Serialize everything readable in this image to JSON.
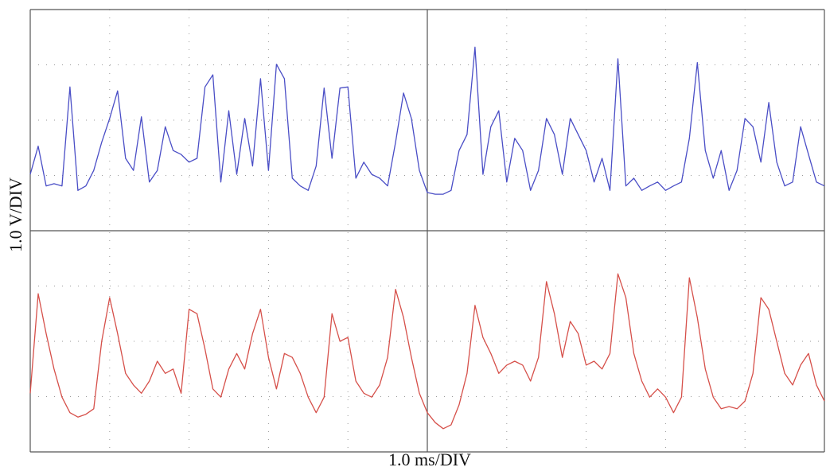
{
  "chart_data": {
    "type": "line",
    "ylabel": "1.0 V/DIV",
    "xlabel": "1.0 ms/DIV",
    "xlim": [
      0,
      10
    ],
    "ylim": [
      -4,
      4
    ],
    "xticks": [
      0,
      1,
      2,
      3,
      4,
      5,
      6,
      7,
      8,
      9,
      10
    ],
    "yticks": [
      -4,
      -3,
      -2,
      -1,
      0,
      1,
      2,
      3,
      4
    ],
    "grid": true,
    "x": [
      0,
      0.1,
      0.2,
      0.3,
      0.4,
      0.5,
      0.6,
      0.7,
      0.8,
      0.9,
      1,
      1.1,
      1.2,
      1.3,
      1.4,
      1.5,
      1.6,
      1.7,
      1.8,
      1.9,
      2,
      2.1,
      2.2,
      2.3,
      2.4,
      2.5,
      2.6,
      2.7,
      2.8,
      2.9,
      3,
      3.1,
      3.2,
      3.3,
      3.4,
      3.5,
      3.6,
      3.7,
      3.8,
      3.9,
      4,
      4.1,
      4.2,
      4.3,
      4.4,
      4.5,
      4.6,
      4.7,
      4.8,
      4.9,
      5,
      5.1,
      5.2,
      5.3,
      5.4,
      5.5,
      5.6,
      5.7,
      5.8,
      5.9,
      6,
      6.1,
      6.2,
      6.3,
      6.4,
      6.5,
      6.6,
      6.7,
      6.8,
      6.9,
      7,
      7.1,
      7.2,
      7.3,
      7.4,
      7.5,
      7.6,
      7.7,
      7.8,
      7.9,
      8,
      8.1,
      8.2,
      8.3,
      8.4,
      8.5,
      8.6,
      8.7,
      8.8,
      8.9,
      9,
      9.1,
      9.2,
      9.3,
      9.4,
      9.5,
      9.6,
      9.7,
      9.8,
      9.9,
      10
    ],
    "series": [
      {
        "color": "#4a4ec6",
        "values": [
          1.02,
          1.53,
          0.81,
          0.85,
          0.81,
          2.6,
          0.73,
          0.81,
          1.09,
          1.6,
          2.03,
          2.53,
          1.31,
          1.09,
          2.06,
          0.88,
          1.09,
          1.88,
          1.45,
          1.38,
          1.24,
          1.31,
          2.6,
          2.82,
          0.88,
          2.17,
          1.02,
          2.03,
          1.17,
          2.75,
          1.09,
          3.01,
          2.75,
          0.95,
          0.81,
          0.73,
          1.17,
          2.58,
          1.31,
          2.58,
          2.6,
          0.95,
          1.24,
          1.02,
          0.95,
          0.81,
          1.6,
          2.49,
          2.03,
          1.09,
          0.69,
          0.66,
          0.66,
          0.73,
          1.45,
          1.74,
          3.32,
          1.02,
          1.88,
          2.17,
          0.88,
          1.67,
          1.45,
          0.73,
          1.09,
          2.03,
          1.74,
          1.02,
          2.03,
          1.74,
          1.45,
          0.88,
          1.31,
          0.73,
          3.11,
          0.81,
          0.95,
          0.73,
          0.81,
          0.88,
          0.73,
          0.81,
          0.88,
          1.67,
          3.04,
          1.45,
          0.95,
          1.45,
          0.73,
          1.09,
          2.03,
          1.88,
          1.24,
          2.32,
          1.24,
          0.81,
          0.88,
          1.88,
          1.38,
          0.88,
          0.81
        ]
      },
      {
        "color": "#d6504a",
        "values": [
          -2.94,
          -1.14,
          -1.86,
          -2.5,
          -3.01,
          -3.29,
          -3.37,
          -3.32,
          -3.22,
          -2.0,
          -1.21,
          -1.86,
          -2.58,
          -2.79,
          -2.94,
          -2.72,
          -2.36,
          -2.58,
          -2.5,
          -2.94,
          -1.42,
          -1.5,
          -2.14,
          -2.86,
          -3.01,
          -2.5,
          -2.22,
          -2.5,
          -1.86,
          -1.42,
          -2.29,
          -2.86,
          -2.22,
          -2.29,
          -2.58,
          -3.01,
          -3.29,
          -3.01,
          -1.5,
          -2.0,
          -1.93,
          -2.72,
          -2.94,
          -3.01,
          -2.79,
          -2.29,
          -1.06,
          -1.57,
          -2.29,
          -2.94,
          -3.29,
          -3.47,
          -3.58,
          -3.51,
          -3.15,
          -2.58,
          -1.35,
          -1.93,
          -2.22,
          -2.58,
          -2.43,
          -2.36,
          -2.43,
          -2.72,
          -2.29,
          -0.92,
          -1.5,
          -2.29,
          -1.64,
          -1.86,
          -2.43,
          -2.36,
          -2.5,
          -2.22,
          -0.78,
          -1.21,
          -2.22,
          -2.72,
          -3.01,
          -2.86,
          -3.01,
          -3.29,
          -3.01,
          -0.85,
          -1.57,
          -2.5,
          -3.01,
          -3.22,
          -3.18,
          -3.22,
          -3.08,
          -2.58,
          -1.21,
          -1.42,
          -2.0,
          -2.58,
          -2.79,
          -2.43,
          -2.22,
          -2.79,
          -3.08
        ]
      }
    ]
  }
}
